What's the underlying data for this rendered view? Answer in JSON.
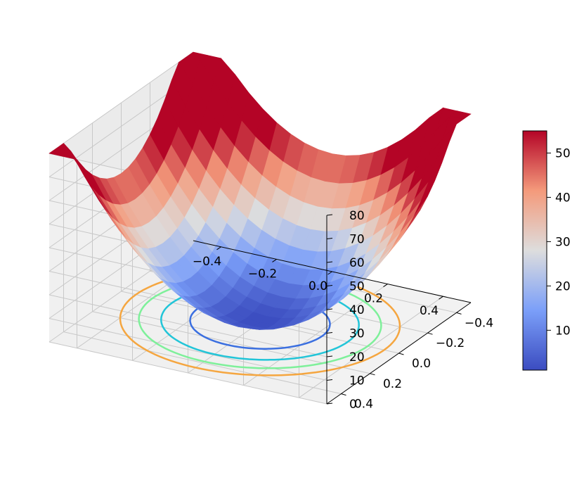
{
  "chart_data": {
    "type": "surface3d",
    "function": "z = 200 * (x^2 + y^2)",
    "colormap": "coolwarm",
    "x": [
      -0.5,
      -0.45,
      -0.4,
      -0.35,
      -0.3,
      -0.25,
      -0.2,
      -0.15,
      -0.1,
      -0.05,
      0.0,
      0.05,
      0.1,
      0.15,
      0.2,
      0.25,
      0.3,
      0.35,
      0.4,
      0.45,
      0.5
    ],
    "y": [
      -0.5,
      -0.45,
      -0.4,
      -0.35,
      -0.3,
      -0.25,
      -0.2,
      -0.15,
      -0.1,
      -0.05,
      0.0,
      0.05,
      0.1,
      0.15,
      0.2,
      0.25,
      0.3,
      0.35,
      0.4,
      0.45,
      0.5
    ],
    "z_range": [
      0,
      100
    ],
    "xlim": [
      -0.5,
      0.5
    ],
    "ylim": [
      -0.5,
      0.5
    ],
    "zlim": [
      0,
      80
    ],
    "contour_offset_z": 0,
    "contour_levels": [
      10,
      20,
      30,
      40
    ],
    "xticks": [
      "−0.4",
      "−0.2",
      "0.0",
      "0.2",
      "0.4"
    ],
    "yticks": [
      "−0.4",
      "−0.2",
      "0.0",
      "0.2",
      "0.4"
    ],
    "zticks": [
      "0",
      "10",
      "20",
      "30",
      "40",
      "50",
      "60",
      "70",
      "80"
    ],
    "colorbar": {
      "range": [
        1,
        55
      ],
      "ticks": [
        "10",
        "20",
        "30",
        "40",
        "50"
      ]
    },
    "grid": true,
    "xlabel": "",
    "ylabel": "",
    "zlabel": "",
    "title": ""
  }
}
